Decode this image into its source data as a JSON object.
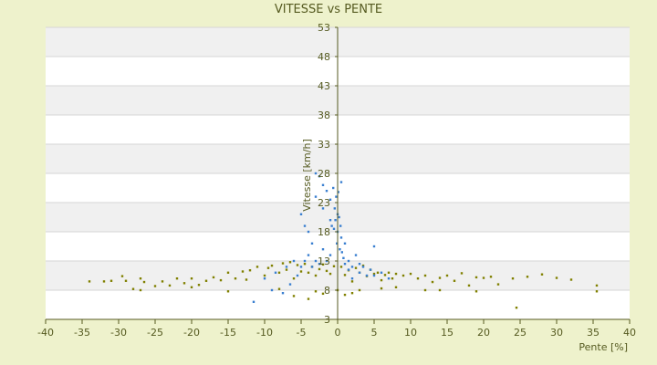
{
  "chart_data": {
    "type": "scatter",
    "title": "VITESSE vs PENTE",
    "xlabel": "Pente [%]",
    "ylabel": "Vitesse [km/h]",
    "xlim": [
      -40,
      40
    ],
    "ylim": [
      3,
      53
    ],
    "x_ticks": [
      -40,
      -35,
      -30,
      -25,
      -20,
      -15,
      -10,
      -5,
      0,
      5,
      10,
      15,
      20,
      25,
      30,
      35,
      40
    ],
    "y_ticks": [
      3,
      8,
      13,
      18,
      23,
      28,
      33,
      38,
      43,
      48,
      53
    ],
    "grid": true,
    "legend": "none",
    "colors": {
      "background": "#eef2cc",
      "plot_band_light": "#ffffff",
      "plot_band_dark": "#f0f0f0",
      "axis": "#555a20",
      "series_a": "#808000",
      "series_b": "#3a7fd0"
    },
    "series": [
      {
        "color": "#808000",
        "x": [
          -34.0,
          -32.0,
          -31.0,
          -29.5,
          -29.0,
          -28.0,
          -27.0,
          -26.5,
          -25.0,
          -24.0,
          -23.0,
          -22.0,
          -21.0,
          -20.0,
          -19.0,
          -18.0,
          -17.0,
          -16.0,
          -15.0,
          -14.0,
          -13.0,
          -12.5,
          -12.0,
          -11.0,
          -10.0,
          -9.5,
          -9.0,
          -8.0,
          -7.5,
          -7.0,
          -6.5,
          -6.0,
          -5.5,
          -5.0,
          -4.5,
          -4.0,
          -3.5,
          -3.0,
          -2.5,
          -2.0,
          -1.5,
          -1.0,
          -0.5,
          0.0,
          0.5,
          1.0,
          1.5,
          2.0,
          2.5,
          3.0,
          3.5,
          4.0,
          4.5,
          5.0,
          5.5,
          6.0,
          6.5,
          7.0,
          7.5,
          8.0,
          9.0,
          10.0,
          11.0,
          12.0,
          13.0,
          14.0,
          15.0,
          16.0,
          17.0,
          18.0,
          19.0,
          20.0,
          21.0,
          22.0,
          24.0,
          26.0,
          28.0,
          30.0,
          32.0,
          35.5,
          -27.0,
          -20.0,
          -15.0,
          -8.0,
          -3.0,
          2.0,
          6.0,
          12.0,
          19.0,
          24.5,
          35.5,
          -6.0,
          -4.0,
          -2.0,
          1.0,
          3.0,
          8.0,
          14.0
        ],
        "y": [
          9.5,
          9.5,
          9.6,
          10.4,
          9.6,
          8.2,
          10.0,
          9.4,
          8.7,
          9.5,
          8.8,
          10.0,
          9.2,
          10.0,
          8.9,
          9.6,
          10.2,
          9.7,
          11.0,
          10.0,
          11.2,
          9.8,
          11.4,
          12.0,
          10.5,
          11.8,
          12.2,
          11.0,
          12.6,
          11.5,
          12.8,
          10.0,
          12.3,
          11.2,
          12.5,
          11.0,
          12.0,
          10.5,
          11.6,
          12.4,
          11.3,
          10.8,
          12.1,
          8.0,
          12.0,
          10.6,
          11.4,
          9.5,
          11.8,
          11.0,
          12.2,
          10.4,
          11.5,
          10.8,
          11.0,
          9.7,
          10.6,
          11.0,
          10.0,
          10.8,
          10.5,
          10.8,
          10.0,
          10.5,
          9.4,
          10.1,
          10.5,
          9.6,
          10.9,
          8.8,
          10.2,
          10.1,
          10.3,
          9.0,
          10.0,
          10.3,
          10.7,
          10.1,
          9.8,
          8.8,
          8.0,
          8.5,
          7.8,
          8.2,
          7.8,
          7.5,
          8.3,
          8.0,
          7.8,
          5.0,
          7.8,
          7.0,
          6.5,
          7.4,
          7.2,
          8.0,
          8.5,
          8.0
        ]
      },
      {
        "color": "#3a7fd0",
        "x": [
          -11.5,
          -10.0,
          -9.0,
          -8.5,
          -7.5,
          -7.0,
          -6.5,
          -6.0,
          -5.5,
          -5.0,
          -5.0,
          -4.5,
          -4.0,
          -4.0,
          -3.5,
          -3.5,
          -3.0,
          -3.0,
          -2.5,
          -2.5,
          -2.0,
          -2.0,
          -1.5,
          -1.5,
          -1.0,
          -1.0,
          -0.8,
          -0.6,
          -0.5,
          -0.4,
          -0.3,
          -0.2,
          -0.1,
          0.0,
          0.0,
          0.1,
          0.2,
          0.3,
          0.4,
          0.5,
          0.6,
          0.8,
          1.0,
          1.0,
          1.5,
          1.5,
          2.0,
          2.0,
          2.5,
          3.0,
          3.0,
          3.5,
          4.0,
          4.5,
          5.0,
          5.0,
          6.0,
          7.0,
          -4.5,
          -3.0,
          -2.0,
          -1.0,
          0.5
        ],
        "y": [
          6.0,
          10.0,
          8.0,
          11.0,
          7.5,
          12.0,
          9.0,
          13.0,
          10.5,
          21.0,
          12.0,
          19.0,
          14.0,
          18.0,
          12.0,
          16.0,
          13.0,
          24.0,
          12.5,
          27.5,
          15.0,
          22.0,
          13.0,
          25.0,
          14.0,
          23.5,
          19.0,
          25.5,
          18.5,
          22.0,
          20.0,
          24.0,
          16.0,
          18.0,
          21.0,
          24.8,
          20.5,
          15.0,
          19.0,
          17.0,
          14.5,
          13.5,
          12.5,
          16.0,
          11.5,
          13.0,
          12.0,
          10.0,
          14.0,
          11.0,
          12.5,
          12.0,
          10.5,
          11.5,
          10.5,
          15.5,
          11.0,
          10.0,
          13.0,
          28.0,
          26.0,
          20.0,
          26.5
        ]
      }
    ]
  }
}
